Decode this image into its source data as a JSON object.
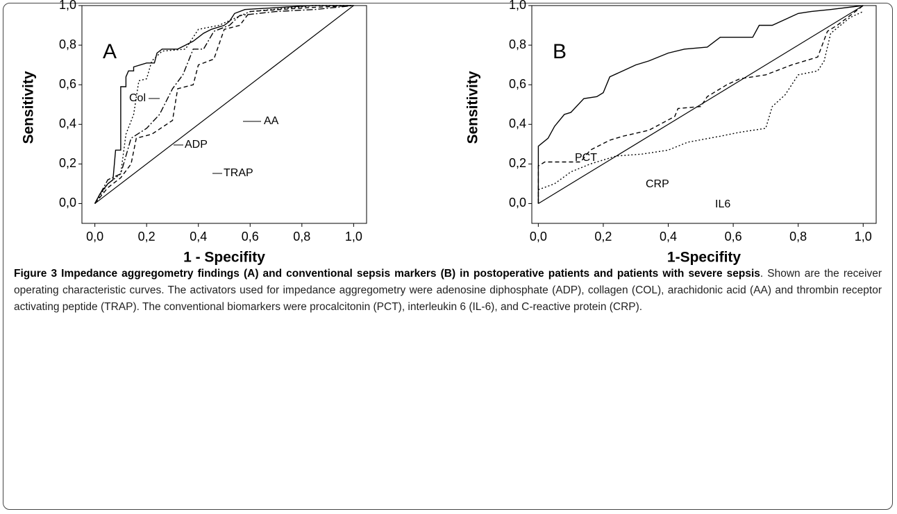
{
  "chart_data": [
    {
      "type": "line",
      "panel_label": "A",
      "x_label": "1 - Specifity",
      "y_label": "Sensitivity",
      "xlim": [
        -0.05,
        1.05
      ],
      "ylim": [
        -0.1,
        1.0
      ],
      "xticks": [
        {
          "value": 0,
          "label": "0,0"
        },
        {
          "value": 0.2,
          "label": "0,2"
        },
        {
          "value": 0.4,
          "label": "0,4"
        },
        {
          "value": 0.6,
          "label": "0,6"
        },
        {
          "value": 0.8,
          "label": "0,8"
        },
        {
          "value": 1,
          "label": "1,0"
        }
      ],
      "yticks": [
        {
          "value": 0,
          "label": "0,0"
        },
        {
          "value": 0.2,
          "label": "0,2"
        },
        {
          "value": 0.4,
          "label": "0,4"
        },
        {
          "value": 0.6,
          "label": "0,6"
        },
        {
          "value": 0.8,
          "label": "0,8"
        },
        {
          "value": 1,
          "label": "1,0"
        }
      ],
      "reference_diagonal": true,
      "series": [
        {
          "name": "Col",
          "color": "#000000",
          "dash": "solid",
          "x": [
            0,
            0.02,
            0.05,
            0.07,
            0.08,
            0.1,
            0.1,
            0.12,
            0.12,
            0.13,
            0.15,
            0.15,
            0.2,
            0.23,
            0.24,
            0.26,
            0.32,
            0.35,
            0.38,
            0.42,
            0.45,
            0.5,
            0.52,
            0.54,
            0.58,
            0.84,
            1
          ],
          "values": [
            0,
            0.05,
            0.1,
            0.12,
            0.27,
            0.27,
            0.59,
            0.59,
            0.64,
            0.67,
            0.67,
            0.69,
            0.71,
            0.71,
            0.76,
            0.78,
            0.78,
            0.8,
            0.82,
            0.86,
            0.88,
            0.9,
            0.92,
            0.96,
            0.98,
            1,
            1
          ]
        },
        {
          "name": "ADP",
          "color": "#000000",
          "dash": "dotted",
          "x": [
            0,
            0.05,
            0.1,
            0.12,
            0.15,
            0.17,
            0.2,
            0.22,
            0.26,
            0.35,
            0.4,
            0.48,
            0.53,
            0.6,
            0.85,
            1
          ],
          "values": [
            0,
            0.1,
            0.15,
            0.35,
            0.45,
            0.62,
            0.63,
            0.72,
            0.77,
            0.78,
            0.88,
            0.9,
            0.93,
            0.97,
            1,
            1
          ]
        },
        {
          "name": "AA",
          "color": "#000000",
          "dash": "dashdot",
          "x": [
            0,
            0.05,
            0.1,
            0.14,
            0.2,
            0.25,
            0.3,
            0.34,
            0.38,
            0.42,
            0.46,
            0.52,
            0.56,
            0.7,
            0.85,
            1
          ],
          "values": [
            0,
            0.12,
            0.15,
            0.33,
            0.38,
            0.45,
            0.58,
            0.65,
            0.78,
            0.78,
            0.87,
            0.9,
            0.95,
            0.97,
            0.98,
            1
          ]
        },
        {
          "name": "TRAP",
          "color": "#000000",
          "dash": "dashed",
          "x": [
            0,
            0.05,
            0.1,
            0.14,
            0.16,
            0.22,
            0.3,
            0.32,
            0.38,
            0.4,
            0.46,
            0.5,
            0.56,
            0.6,
            0.83,
            1
          ],
          "values": [
            0,
            0.08,
            0.13,
            0.2,
            0.33,
            0.35,
            0.42,
            0.58,
            0.6,
            0.7,
            0.73,
            0.88,
            0.9,
            0.97,
            0.99,
            1
          ]
        }
      ]
    },
    {
      "type": "line",
      "panel_label": "B",
      "x_label": "1-Specifity",
      "y_label": "Sensitivity",
      "xlim": [
        -0.02,
        1.04
      ],
      "ylim": [
        -0.1,
        1.0
      ],
      "xticks": [
        {
          "value": 0,
          "label": "0,0"
        },
        {
          "value": 0.2,
          "label": "0,2"
        },
        {
          "value": 0.4,
          "label": "0,4"
        },
        {
          "value": 0.6,
          "label": "0,6"
        },
        {
          "value": 0.8,
          "label": "0,8"
        },
        {
          "value": 1,
          "label": "1,0"
        }
      ],
      "yticks": [
        {
          "value": 0,
          "label": "0,0"
        },
        {
          "value": 0.2,
          "label": "0,2"
        },
        {
          "value": 0.4,
          "label": "0,4"
        },
        {
          "value": 0.6,
          "label": "0,6"
        },
        {
          "value": 0.8,
          "label": "0,8"
        },
        {
          "value": 1,
          "label": "1,0"
        }
      ],
      "reference_diagonal": true,
      "series": [
        {
          "name": "PCT",
          "color": "#000000",
          "dash": "solid",
          "x": [
            0,
            0,
            0.03,
            0.05,
            0.08,
            0.1,
            0.14,
            0.18,
            0.2,
            0.22,
            0.26,
            0.3,
            0.34,
            0.4,
            0.45,
            0.52,
            0.56,
            0.66,
            0.68,
            0.72,
            0.76,
            0.8,
            0.84,
            0.9,
            1
          ],
          "values": [
            0,
            0.29,
            0.33,
            0.39,
            0.45,
            0.46,
            0.53,
            0.54,
            0.56,
            0.64,
            0.67,
            0.7,
            0.72,
            0.76,
            0.78,
            0.79,
            0.84,
            0.84,
            0.9,
            0.9,
            0.93,
            0.96,
            0.97,
            0.98,
            1
          ]
        },
        {
          "name": "CRP",
          "color": "#000000",
          "dash": "dashed",
          "x": [
            0,
            0,
            0.02,
            0.13,
            0.16,
            0.22,
            0.26,
            0.34,
            0.42,
            0.43,
            0.5,
            0.52,
            0.58,
            0.62,
            0.7,
            0.78,
            0.86,
            0.89,
            0.92,
            0.96,
            1
          ],
          "values": [
            0,
            0.19,
            0.21,
            0.21,
            0.27,
            0.32,
            0.34,
            0.37,
            0.44,
            0.48,
            0.49,
            0.54,
            0.6,
            0.63,
            0.65,
            0.7,
            0.74,
            0.87,
            0.9,
            0.95,
            1
          ]
        },
        {
          "name": "IL6",
          "color": "#000000",
          "dash": "dotted",
          "x": [
            0,
            0,
            0.05,
            0.1,
            0.16,
            0.24,
            0.32,
            0.4,
            0.46,
            0.56,
            0.62,
            0.7,
            0.72,
            0.76,
            0.8,
            0.86,
            0.88,
            0.9,
            0.96,
            1
          ],
          "values": [
            0,
            0.07,
            0.1,
            0.16,
            0.2,
            0.24,
            0.25,
            0.27,
            0.31,
            0.34,
            0.36,
            0.38,
            0.49,
            0.55,
            0.65,
            0.67,
            0.72,
            0.86,
            0.94,
            0.97
          ]
        }
      ]
    }
  ],
  "caption": {
    "title": "Figure 3 Impedance aggregometry findings (A) and conventional sepsis markers (B) in postoperative patients and patients with severe sepsis",
    "text": ". Shown are the receiver operating characteristic curves. The activators used for impedance aggregometry were adenosine diphosphate (ADP), collagen (COL), arachidonic acid (AA) and thrombin receptor activating peptide (TRAP). The conventional biomarkers were procalcitonin (PCT), interleukin 6 (IL-6), and C-reactive protein (CRP)."
  }
}
